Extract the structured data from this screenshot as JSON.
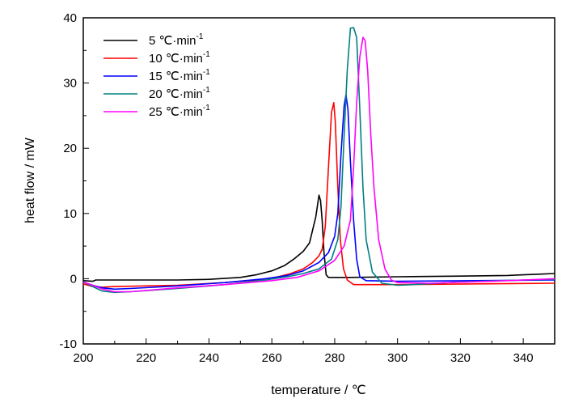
{
  "chart_data": {
    "type": "line",
    "xlabel": "temperature / ℃",
    "ylabel": "heat flow / mW",
    "xlim": [
      200,
      350
    ],
    "ylim": [
      -10,
      40
    ],
    "xticks": [
      200,
      220,
      240,
      260,
      280,
      300,
      320,
      340
    ],
    "yticks": [
      -10,
      0,
      10,
      20,
      30,
      40
    ],
    "legend_position": "top-left",
    "grid": false,
    "series": [
      {
        "name": "5 ℃·min",
        "name_sup": "-1",
        "color": "#000000",
        "points": [
          [
            200,
            -0.3
          ],
          [
            203,
            -0.4
          ],
          [
            204,
            -0.2
          ],
          [
            210,
            -0.2
          ],
          [
            230,
            -0.2
          ],
          [
            240,
            -0.1
          ],
          [
            250,
            0.2
          ],
          [
            255,
            0.6
          ],
          [
            260,
            1.2
          ],
          [
            264,
            2.0
          ],
          [
            267,
            3.0
          ],
          [
            270,
            4.2
          ],
          [
            272,
            5.5
          ],
          [
            273,
            7.5
          ],
          [
            274,
            9.5
          ],
          [
            275,
            12.8
          ],
          [
            275.5,
            12.0
          ],
          [
            276,
            9.0
          ],
          [
            276.6,
            4.0
          ],
          [
            277.3,
            0.6
          ],
          [
            278,
            0.2
          ],
          [
            285,
            0.2
          ],
          [
            300,
            0.3
          ],
          [
            320,
            0.4
          ],
          [
            335,
            0.5
          ],
          [
            345,
            0.7
          ],
          [
            350,
            0.8
          ]
        ]
      },
      {
        "name": "10 ℃·min",
        "name_sup": "-1",
        "color": "#ff0000",
        "points": [
          [
            200,
            -0.8
          ],
          [
            203,
            -1.2
          ],
          [
            206,
            -1.3
          ],
          [
            210,
            -1.2
          ],
          [
            230,
            -1.0
          ],
          [
            245,
            -0.6
          ],
          [
            255,
            -0.2
          ],
          [
            262,
            0.3
          ],
          [
            266,
            0.8
          ],
          [
            270,
            1.5
          ],
          [
            273,
            2.5
          ],
          [
            275,
            3.5
          ],
          [
            276,
            4.5
          ],
          [
            277,
            8.0
          ],
          [
            278,
            17.0
          ],
          [
            279,
            25.5
          ],
          [
            279.7,
            27.0
          ],
          [
            280.2,
            24.0
          ],
          [
            281,
            14.0
          ],
          [
            281.8,
            6.0
          ],
          [
            282.8,
            1.5
          ],
          [
            284,
            -0.2
          ],
          [
            286,
            -0.9
          ],
          [
            300,
            -0.9
          ],
          [
            325,
            -0.8
          ],
          [
            350,
            -0.7
          ]
        ]
      },
      {
        "name": "15 ℃·min",
        "name_sup": "-1",
        "color": "#0000ff",
        "points": [
          [
            200,
            -0.5
          ],
          [
            203,
            -1.0
          ],
          [
            206,
            -1.4
          ],
          [
            210,
            -1.6
          ],
          [
            215,
            -1.5
          ],
          [
            230,
            -1.1
          ],
          [
            245,
            -0.6
          ],
          [
            258,
            0.0
          ],
          [
            265,
            0.5
          ],
          [
            270,
            1.2
          ],
          [
            275,
            2.5
          ],
          [
            278,
            4.0
          ],
          [
            280,
            6.5
          ],
          [
            281,
            10.0
          ],
          [
            282,
            19.0
          ],
          [
            283,
            26.5
          ],
          [
            283.6,
            28.2
          ],
          [
            284.2,
            26.0
          ],
          [
            285,
            18.0
          ],
          [
            286,
            9.0
          ],
          [
            287,
            3.0
          ],
          [
            288,
            0.3
          ],
          [
            290,
            -0.3
          ],
          [
            300,
            -0.4
          ],
          [
            325,
            -0.3
          ],
          [
            350,
            -0.2
          ]
        ]
      },
      {
        "name": "20 ℃·min",
        "name_sup": "-1",
        "color": "#008080",
        "points": [
          [
            200,
            -0.5
          ],
          [
            203,
            -1.2
          ],
          [
            206,
            -1.9
          ],
          [
            210,
            -2.1
          ],
          [
            215,
            -2.0
          ],
          [
            230,
            -1.5
          ],
          [
            245,
            -0.9
          ],
          [
            258,
            -0.2
          ],
          [
            265,
            0.3
          ],
          [
            270,
            0.8
          ],
          [
            275,
            1.5
          ],
          [
            279,
            3.0
          ],
          [
            281,
            6.0
          ],
          [
            282,
            11.0
          ],
          [
            283,
            22.0
          ],
          [
            284,
            32.0
          ],
          [
            285,
            38.4
          ],
          [
            286,
            38.5
          ],
          [
            287,
            37.0
          ],
          [
            288,
            26.0
          ],
          [
            289,
            14.0
          ],
          [
            290,
            6.0
          ],
          [
            292,
            1.0
          ],
          [
            295,
            -0.7
          ],
          [
            300,
            -1.0
          ],
          [
            305,
            -0.9
          ],
          [
            320,
            -0.5
          ],
          [
            340,
            -0.2
          ],
          [
            350,
            -0.1
          ]
        ]
      },
      {
        "name": "25 ℃·min",
        "name_sup": "-1",
        "color": "#ff00ff",
        "points": [
          [
            200,
            -0.5
          ],
          [
            203,
            -1.0
          ],
          [
            206,
            -1.6
          ],
          [
            210,
            -2.0
          ],
          [
            215,
            -2.0
          ],
          [
            230,
            -1.4
          ],
          [
            245,
            -0.9
          ],
          [
            260,
            -0.3
          ],
          [
            268,
            0.2
          ],
          [
            275,
            1.2
          ],
          [
            280,
            2.8
          ],
          [
            283,
            5.0
          ],
          [
            285,
            9.0
          ],
          [
            286,
            17.0
          ],
          [
            287,
            27.0
          ],
          [
            288,
            34.0
          ],
          [
            289,
            37.0
          ],
          [
            289.7,
            36.5
          ],
          [
            290.5,
            32.0
          ],
          [
            291.5,
            22.0
          ],
          [
            292.5,
            14.0
          ],
          [
            294,
            6.0
          ],
          [
            296,
            1.5
          ],
          [
            298,
            -0.2
          ],
          [
            300,
            -0.6
          ],
          [
            310,
            -0.7
          ],
          [
            330,
            -0.4
          ],
          [
            350,
            0.0
          ]
        ]
      }
    ]
  }
}
